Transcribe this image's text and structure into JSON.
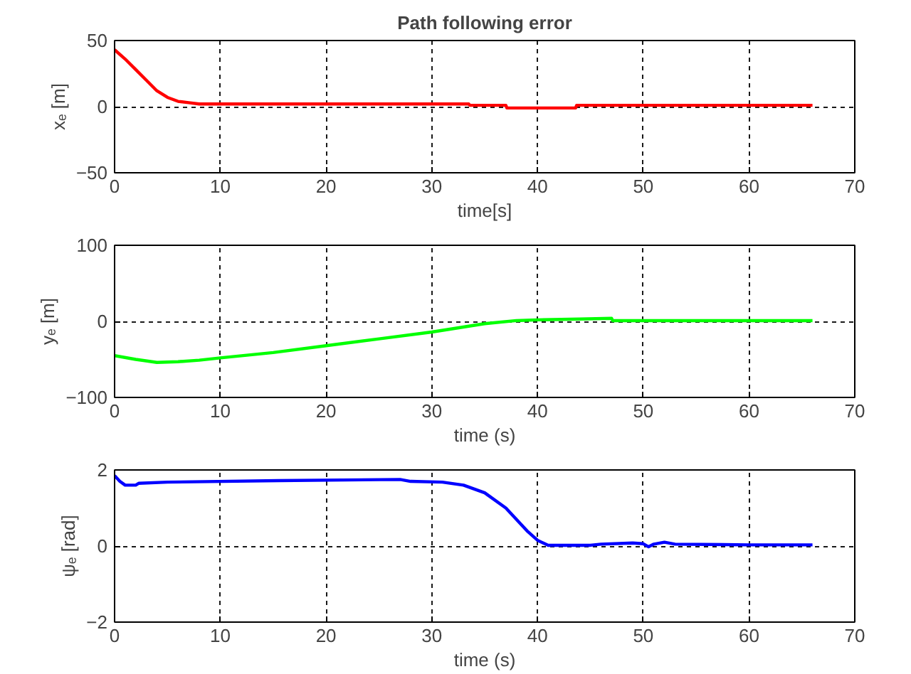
{
  "chart_data": [
    {
      "type": "line",
      "title": "Path following error",
      "xlabel": "time[s]",
      "ylabel": "xₑ [m]",
      "xlim": [
        0,
        70
      ],
      "xticks": [
        0,
        10,
        20,
        30,
        40,
        50,
        60,
        70
      ],
      "ylim": [
        -50,
        50
      ],
      "yticks": [
        -50,
        0,
        50
      ],
      "grid": true,
      "line_style": "solid",
      "series": [
        {
          "color": "#ff0000",
          "x": [
            0,
            1,
            2,
            3,
            4,
            5,
            6,
            7,
            8,
            15,
            25,
            33.5,
            33.6,
            37,
            37.1,
            43.6,
            43.7,
            55,
            66
          ],
          "values": [
            43,
            36,
            28,
            20,
            12,
            7,
            4,
            3,
            2,
            2,
            2,
            2,
            1,
            1,
            -1,
            -1,
            1,
            1,
            1
          ]
        }
      ]
    },
    {
      "type": "line",
      "xlabel": "time (s)",
      "ylabel": "yₑ [m]",
      "xlim": [
        0,
        70
      ],
      "xticks": [
        0,
        10,
        20,
        30,
        40,
        50,
        60,
        70
      ],
      "ylim": [
        -100,
        100
      ],
      "yticks": [
        -100,
        0,
        100
      ],
      "grid": true,
      "line_style": "solid",
      "series": [
        {
          "color": "#00ff00",
          "x": [
            0,
            2,
            4,
            6,
            8,
            10,
            15,
            20,
            25,
            30,
            35,
            38,
            40,
            44,
            47,
            47.1,
            55,
            66
          ],
          "values": [
            -45,
            -50,
            -54,
            -53,
            -51,
            -48,
            -41,
            -32,
            -23,
            -14,
            -3,
            1,
            2,
            3,
            4,
            1,
            1,
            1
          ]
        }
      ]
    },
    {
      "type": "line",
      "xlabel": "time (s)",
      "ylabel": "ψₑ [rad]",
      "xlim": [
        0,
        70
      ],
      "xticks": [
        0,
        10,
        20,
        30,
        40,
        50,
        60,
        70
      ],
      "ylim": [
        -2,
        2
      ],
      "yticks": [
        -2,
        0,
        2
      ],
      "grid": true,
      "line_style": "solid",
      "series": [
        {
          "color": "#0000ff",
          "x": [
            0,
            0.5,
            1,
            2,
            2.3,
            5,
            15.5,
            27,
            28,
            31,
            33,
            35,
            37,
            39,
            40,
            41,
            45,
            46,
            49,
            50,
            50.5,
            51,
            52,
            53,
            60,
            66
          ],
          "values": [
            1.85,
            1.7,
            1.6,
            1.6,
            1.65,
            1.68,
            1.72,
            1.75,
            1.7,
            1.68,
            1.6,
            1.4,
            1.0,
            0.4,
            0.15,
            0.02,
            0.02,
            0.05,
            0.08,
            0.06,
            -0.02,
            0.05,
            0.1,
            0.05,
            0.03,
            0.03
          ]
        }
      ]
    }
  ]
}
